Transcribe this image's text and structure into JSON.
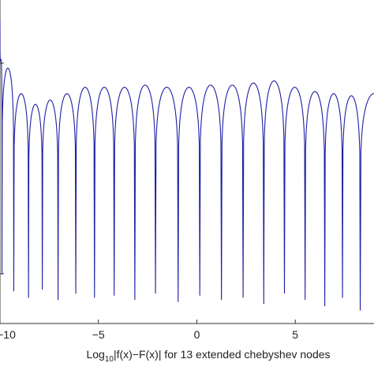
{
  "chart_data": {
    "type": "line",
    "title": "",
    "xlabel": {
      "prefix": "Log",
      "subscript": "10",
      "suffix": "|f(x)−F(x)| for 13 extended chebyshev nodes"
    },
    "ylabel": "",
    "x_ticks": [
      {
        "value": -10,
        "label": "−10"
      },
      {
        "value": -5,
        "label": "−5"
      },
      {
        "value": 0,
        "label": "0"
      },
      {
        "value": 5,
        "label": "5"
      }
    ],
    "xlim": [
      -10,
      9
    ],
    "ylim": [
      -6.6,
      1.0
    ],
    "grid": false,
    "legend": "none",
    "series_color": "#1f1fa6",
    "series": [
      {
        "minima_x": [
          -9.9,
          -9.3,
          -8.55,
          -7.85,
          -7.05,
          -6.15,
          -5.2,
          -4.2,
          -3.15,
          -2.1,
          -0.95,
          0.15,
          1.25,
          2.35,
          3.4,
          4.45,
          5.5,
          6.5,
          7.4,
          8.3
        ],
        "minima_y": [
          -5.5,
          -5.9,
          -6.05,
          -5.85,
          -6.1,
          -5.95,
          -6.05,
          -6.0,
          -6.1,
          -5.95,
          -6.15,
          -6.0,
          -6.1,
          -6.05,
          -6.2,
          -5.95,
          -6.1,
          -6.25,
          -6.05,
          -6.35
        ],
        "peaks_y": [
          -0.4,
          -0.6,
          -1.2,
          -1.45,
          -1.35,
          -1.2,
          -1.05,
          -1.05,
          -1.05,
          -1.0,
          -1.05,
          -1.05,
          -1.0,
          -1.0,
          -0.95,
          -0.9,
          -1.05,
          -1.15,
          -1.2,
          -1.25
        ],
        "start": {
          "x": -10.0,
          "y": 0.5
        },
        "end_peak": {
          "x": 9.0,
          "y": -1.2
        }
      }
    ]
  }
}
